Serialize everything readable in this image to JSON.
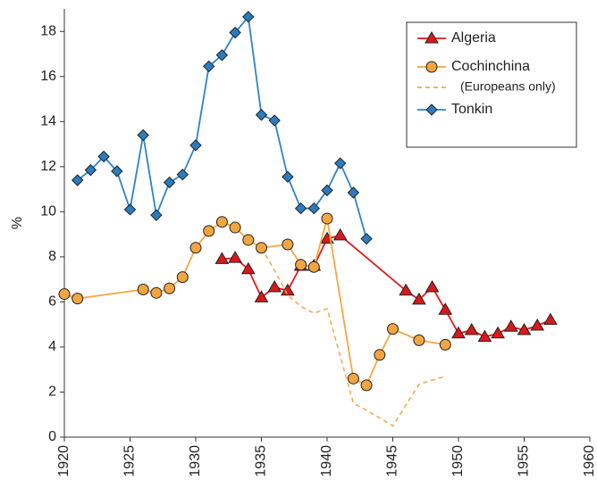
{
  "chart_data": {
    "type": "line",
    "y_label": "%",
    "xlim": [
      1920,
      1960
    ],
    "xticks": [
      1920,
      1925,
      1930,
      1935,
      1940,
      1945,
      1950,
      1955,
      1960
    ],
    "ylim": [
      0,
      19
    ],
    "yticks": [
      0,
      2,
      4,
      6,
      8,
      10,
      12,
      14,
      16,
      18
    ],
    "legend": "top-right",
    "series": [
      {
        "name": "Algeria",
        "color": "#e41a1c",
        "marker": "triangle",
        "marker_color": "#d7191c",
        "dashed": false,
        "x": [
          1932,
          1933,
          1934,
          1935,
          1936,
          1937,
          1938,
          1939,
          1940,
          1941,
          1946,
          1947,
          1948,
          1949,
          1950,
          1951,
          1952,
          1953,
          1954,
          1955,
          1956,
          1957
        ],
        "values": [
          7.9,
          7.95,
          7.45,
          6.2,
          6.65,
          6.5,
          7.6,
          7.6,
          8.8,
          8.95,
          6.5,
          6.1,
          6.65,
          5.65,
          4.6,
          4.75,
          4.45,
          4.6,
          4.9,
          4.75,
          4.95,
          5.2
        ]
      },
      {
        "name": "Cochinchina",
        "color": "#f5a742",
        "marker": "circle",
        "marker_color": "#f2a541",
        "dashed": false,
        "x": [
          1920,
          1921,
          1926,
          1927,
          1928,
          1929,
          1930,
          1931,
          1932,
          1933,
          1934,
          1935,
          1937,
          1938,
          1939,
          1940,
          1942,
          1943,
          1944,
          1945,
          1947,
          1949
        ],
        "values": [
          6.35,
          6.15,
          6.55,
          6.4,
          6.6,
          7.1,
          8.4,
          9.15,
          9.55,
          9.3,
          8.75,
          8.4,
          8.55,
          7.65,
          7.55,
          9.7,
          2.6,
          2.3,
          3.65,
          4.8,
          4.3,
          4.1
        ]
      },
      {
        "name": "(Europeans only)",
        "color": "#f5a742",
        "marker": "none",
        "marker_color": "#f5a742",
        "dashed": true,
        "x": [
          1935,
          1936,
          1937,
          1938,
          1939,
          1940,
          1942,
          1943,
          1945,
          1947,
          1949
        ],
        "values": [
          8.4,
          7.4,
          6.3,
          5.8,
          5.5,
          5.7,
          1.5,
          1.2,
          0.5,
          2.35,
          2.7
        ]
      },
      {
        "name": "Tonkin",
        "color": "#2f83c8",
        "marker": "diamond",
        "marker_color": "#2a7cc0",
        "dashed": false,
        "x": [
          1921,
          1922,
          1923,
          1924,
          1925,
          1926,
          1927,
          1928,
          1929,
          1930,
          1931,
          1932,
          1933,
          1934,
          1935,
          1936,
          1937,
          1938,
          1939,
          1940,
          1941,
          1942,
          1943
        ],
        "values": [
          11.4,
          11.85,
          12.45,
          11.8,
          10.1,
          13.4,
          9.85,
          11.3,
          11.65,
          12.95,
          16.45,
          16.95,
          17.95,
          18.65,
          14.3,
          14.05,
          11.55,
          10.15,
          10.15,
          10.95,
          12.15,
          10.85,
          8.8
        ]
      }
    ]
  }
}
